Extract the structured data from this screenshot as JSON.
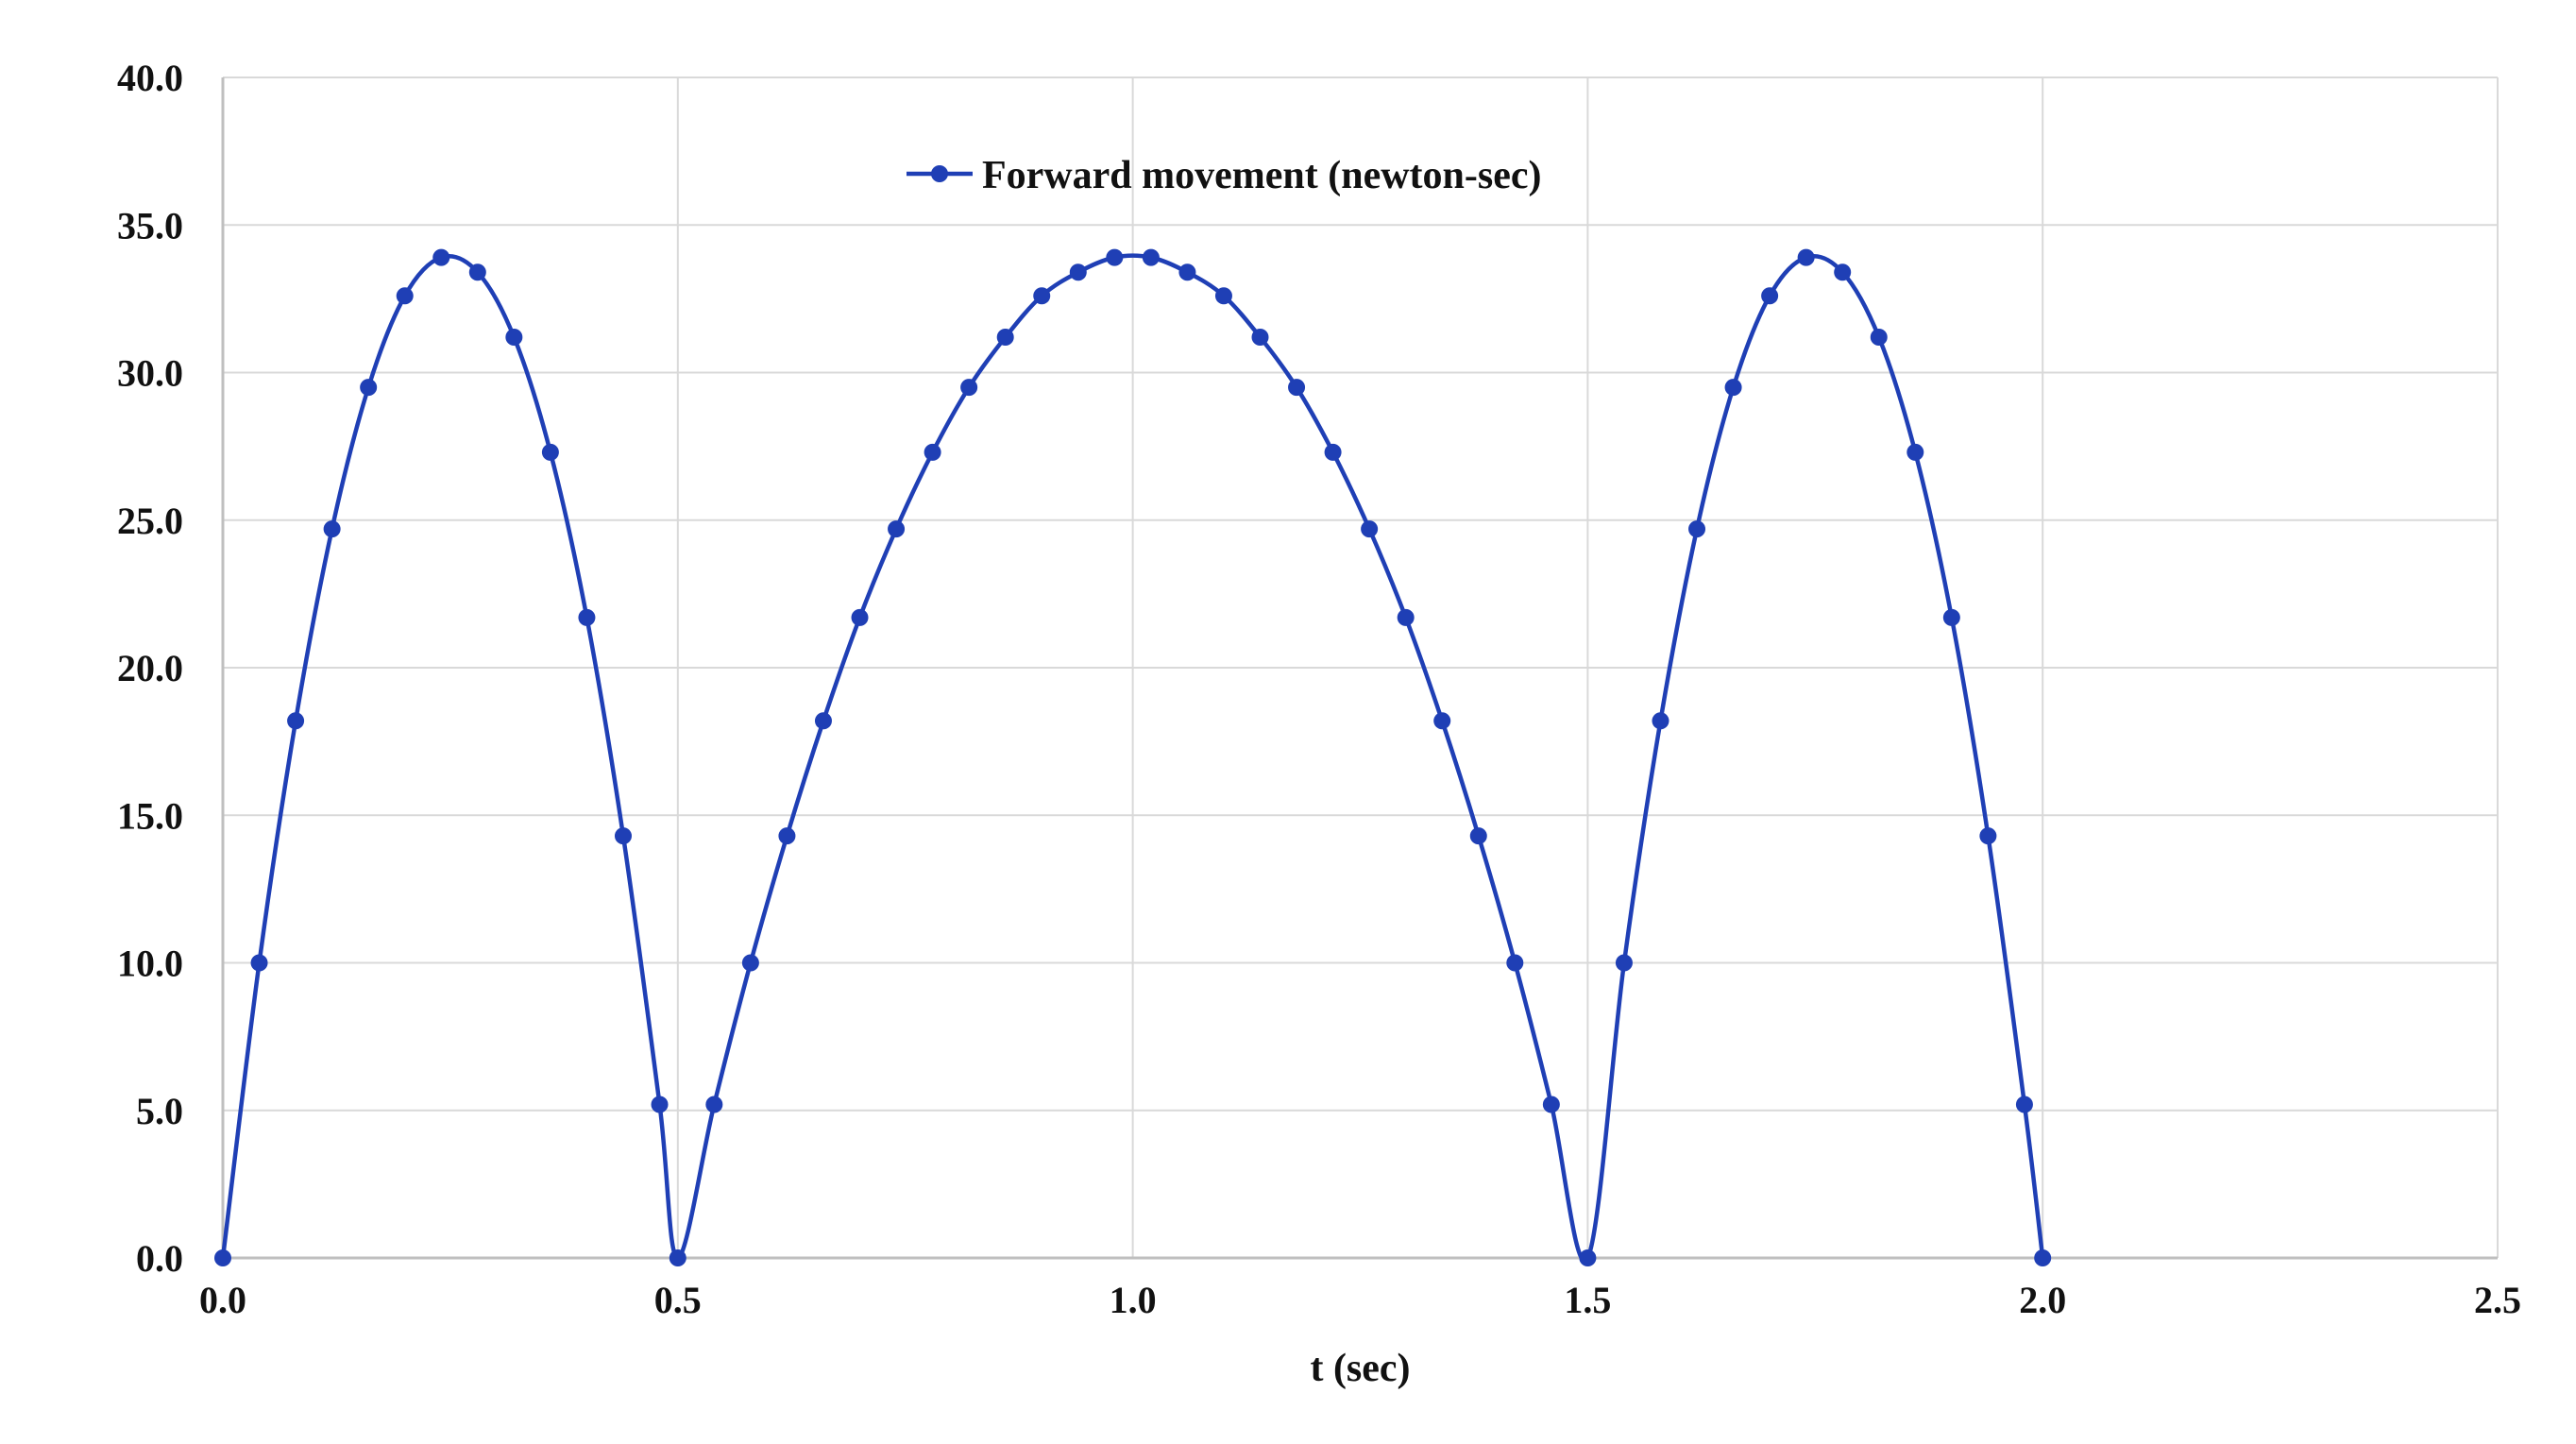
{
  "colors": {
    "series": "#1f3fb5",
    "grid": "#d9d9d9",
    "axis": "#bfbfbf",
    "background": "#ffffff"
  },
  "chart_data": {
    "type": "line",
    "title": "",
    "xlabel": "t (sec)",
    "ylabel": "",
    "xlim": [
      0,
      2.5
    ],
    "ylim": [
      0,
      40
    ],
    "xticks": [
      0,
      0.5,
      1.0,
      1.5,
      2.0,
      2.5
    ],
    "xtick_labels": [
      "0.0",
      "0.5",
      "1.0",
      "1.5",
      "2.0",
      "2.5"
    ],
    "yticks": [
      0,
      5,
      10,
      15,
      20,
      25,
      30,
      35,
      40
    ],
    "ytick_labels": [
      "0.0",
      "5.0",
      "10.0",
      "15.0",
      "20.0",
      "25.0",
      "30.0",
      "35.0",
      "40.0"
    ],
    "grid": true,
    "legend": {
      "position": "top-center",
      "marker": "circle"
    },
    "series": [
      {
        "name": "Forward movement (newton-sec)",
        "color": "#1f3fb5",
        "marker": "circle",
        "smooth": true,
        "x": [
          0.0,
          0.04,
          0.08,
          0.12,
          0.16,
          0.2,
          0.24,
          0.28,
          0.32,
          0.36,
          0.4,
          0.44,
          0.48,
          0.5,
          0.54,
          0.58,
          0.62,
          0.66,
          0.7,
          0.74,
          0.78,
          0.82,
          0.86,
          0.9,
          0.94,
          0.98,
          1.02,
          1.06,
          1.1,
          1.14,
          1.18,
          1.22,
          1.26,
          1.3,
          1.34,
          1.38,
          1.42,
          1.46,
          1.5,
          1.54,
          1.58,
          1.62,
          1.66,
          1.7,
          1.74,
          1.78,
          1.82,
          1.86,
          1.9,
          1.94,
          1.98,
          2.0
        ],
        "y": [
          0.0,
          10.0,
          18.2,
          24.7,
          29.5,
          32.6,
          33.9,
          33.4,
          31.2,
          27.3,
          21.7,
          14.3,
          5.2,
          0.0,
          5.2,
          10.0,
          14.3,
          18.2,
          21.7,
          24.7,
          27.3,
          29.5,
          31.2,
          32.6,
          33.4,
          33.9,
          33.9,
          33.4,
          32.6,
          31.2,
          29.5,
          27.3,
          24.7,
          21.7,
          18.2,
          14.3,
          10.0,
          5.2,
          0.0,
          10.0,
          18.2,
          24.7,
          29.5,
          32.6,
          33.9,
          33.4,
          31.2,
          27.3,
          21.7,
          14.3,
          5.2,
          0.0
        ]
      }
    ]
  }
}
